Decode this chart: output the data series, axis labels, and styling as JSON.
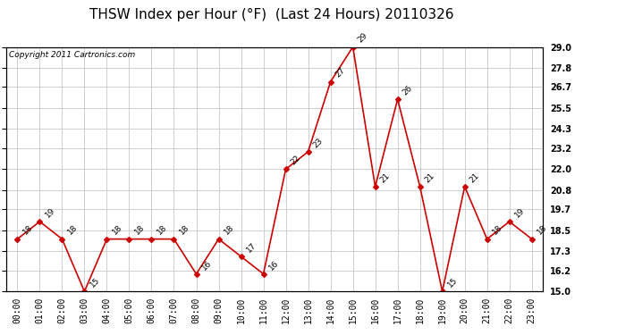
{
  "title": "THSW Index per Hour (°F)  (Last 24 Hours) 20110326",
  "copyright_text": "Copyright 2011 Cartronics.com",
  "hours": [
    "00:00",
    "01:00",
    "02:00",
    "03:00",
    "04:00",
    "05:00",
    "06:00",
    "07:00",
    "08:00",
    "09:00",
    "10:00",
    "11:00",
    "12:00",
    "13:00",
    "14:00",
    "15:00",
    "16:00",
    "17:00",
    "18:00",
    "19:00",
    "20:00",
    "21:00",
    "22:00",
    "23:00"
  ],
  "values": [
    18,
    19,
    18,
    15,
    18,
    18,
    18,
    18,
    16,
    18,
    17,
    16,
    22,
    23,
    27,
    29,
    21,
    26,
    21,
    15,
    21,
    18,
    19,
    18
  ],
  "ylim_min": 15.0,
  "ylim_max": 29.0,
  "yticks": [
    15.0,
    16.2,
    17.3,
    18.5,
    19.7,
    20.8,
    22.0,
    23.2,
    24.3,
    25.5,
    26.7,
    27.8,
    29.0
  ],
  "line_color": "#cc0000",
  "marker_color": "#cc0000",
  "bg_color": "#ffffff",
  "grid_color": "#c8c8c8",
  "title_fontsize": 11,
  "label_fontsize": 7,
  "annotation_fontsize": 6.5,
  "copyright_fontsize": 6.5
}
